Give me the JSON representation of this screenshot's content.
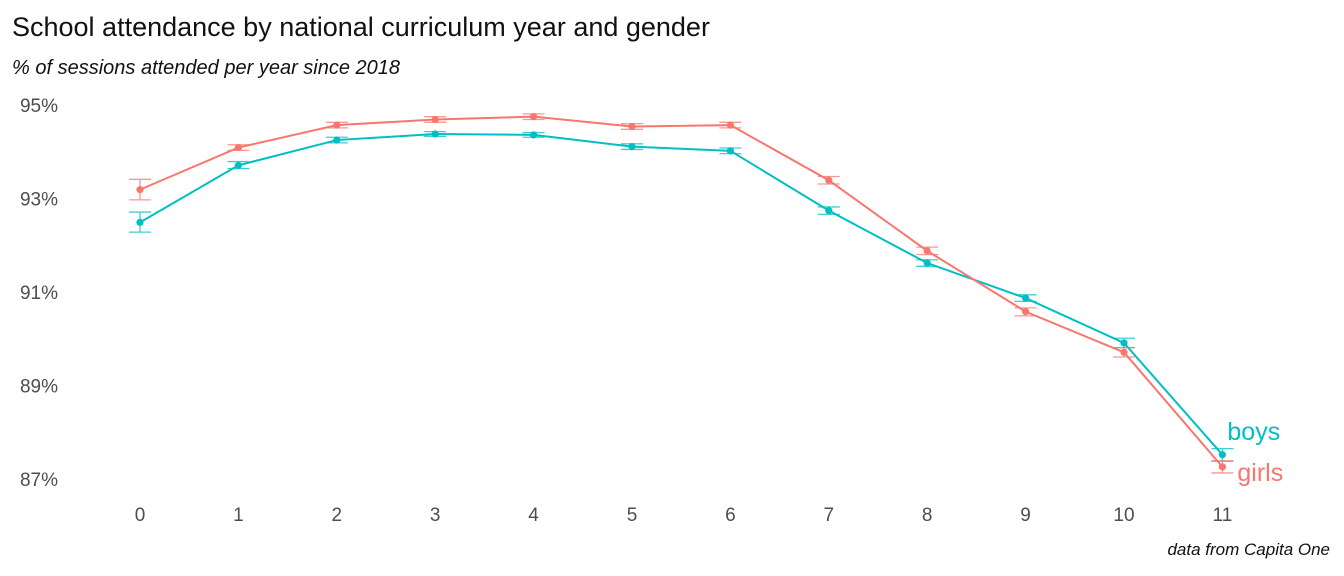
{
  "title": "School attendance by national curriculum year and gender",
  "subtitle": "% of sessions attended per year since 2018",
  "caption": "data from Capita One",
  "colors": {
    "boys": "#00bfc4",
    "girls": "#f8766d"
  },
  "chart_data": {
    "type": "line",
    "xlabel": "",
    "ylabel": "",
    "x": [
      0,
      1,
      2,
      3,
      4,
      5,
      6,
      7,
      8,
      9,
      10,
      11
    ],
    "x_tick_labels": [
      "0",
      "1",
      "2",
      "3",
      "4",
      "5",
      "6",
      "7",
      "8",
      "9",
      "10",
      "11"
    ],
    "y_ticks": [
      87,
      89,
      91,
      93,
      95
    ],
    "y_tick_labels": [
      "87%",
      "89%",
      "91%",
      "93%",
      "95%"
    ],
    "ylim": [
      86.9,
      95.3
    ],
    "grid": false,
    "legend": "direct labels at right end of lines",
    "series": [
      {
        "name": "boys",
        "color": "#00bfc4",
        "values": [
          92.49,
          93.71,
          94.25,
          94.38,
          94.36,
          94.11,
          94.02,
          92.74,
          91.62,
          90.87,
          89.91,
          87.52
        ],
        "error_low": [
          92.28,
          93.64,
          94.19,
          94.33,
          94.31,
          94.05,
          93.96,
          92.66,
          91.55,
          90.8,
          89.81,
          87.38
        ],
        "error_high": [
          92.71,
          93.79,
          94.31,
          94.43,
          94.41,
          94.17,
          94.08,
          92.82,
          91.69,
          90.94,
          90.01,
          87.65
        ]
      },
      {
        "name": "girls",
        "color": "#f8766d",
        "values": [
          93.19,
          94.09,
          94.57,
          94.69,
          94.75,
          94.54,
          94.57,
          93.39,
          91.88,
          90.58,
          89.71,
          87.26
        ],
        "error_low": [
          92.97,
          94.03,
          94.51,
          94.63,
          94.69,
          94.48,
          94.51,
          93.31,
          91.8,
          90.49,
          89.61,
          87.13
        ],
        "error_high": [
          93.41,
          94.15,
          94.63,
          94.75,
          94.81,
          94.6,
          94.63,
          93.47,
          91.96,
          90.66,
          89.81,
          87.39
        ]
      }
    ]
  }
}
